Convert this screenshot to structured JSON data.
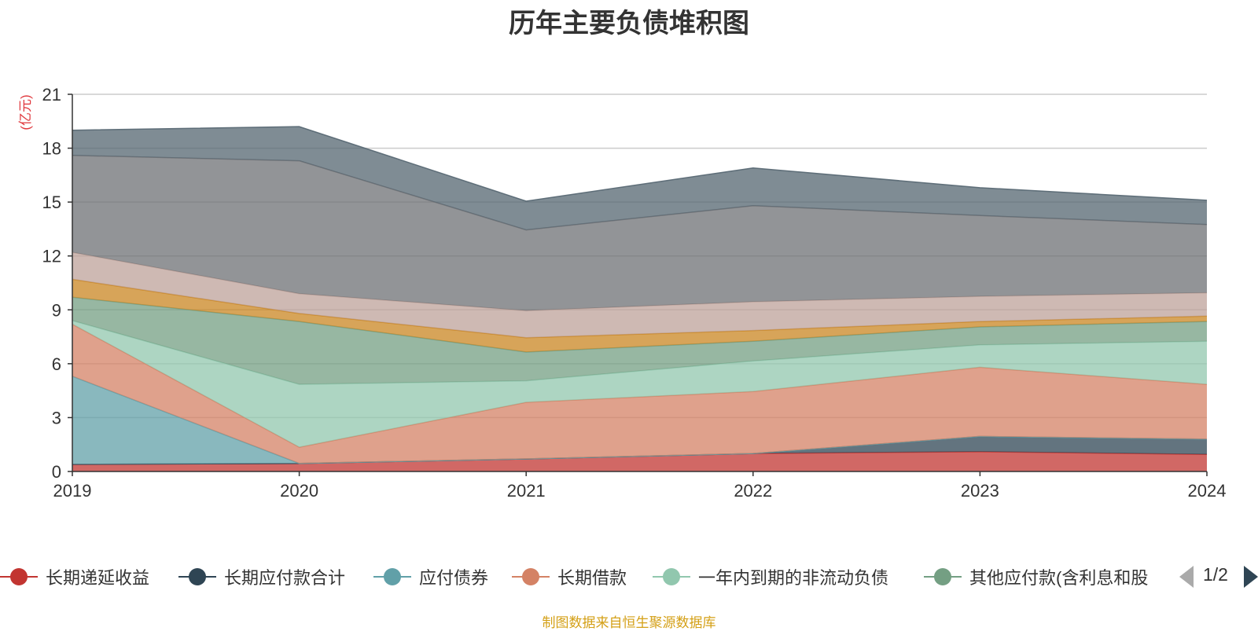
{
  "chart_data": {
    "type": "area",
    "stacked": true,
    "title": "历年主要负债堆积图",
    "ylabel": "(亿元)",
    "xlabel": "",
    "categories": [
      "2019",
      "2020",
      "2021",
      "2022",
      "2023",
      "2024"
    ],
    "ylim": [
      0,
      21
    ],
    "yticks": [
      0,
      3,
      6,
      9,
      12,
      15,
      18,
      21
    ],
    "grid": true,
    "legend_position": "bottom",
    "series": [
      {
        "name": "长期递延收益",
        "color": "#c23531",
        "values": [
          0.4,
          0.45,
          0.7,
          1.0,
          1.1,
          0.95
        ]
      },
      {
        "name": "长期应付款合计",
        "color": "#2f4554",
        "values": [
          0,
          0,
          0,
          0,
          0.85,
          0.85
        ]
      },
      {
        "name": "应付债券",
        "color": "#61a0a8",
        "values": [
          4.9,
          0,
          0,
          0,
          0,
          0
        ]
      },
      {
        "name": "长期借款",
        "color": "#d48265",
        "values": [
          2.9,
          0.9,
          3.15,
          3.45,
          3.85,
          3.05
        ]
      },
      {
        "name": "一年内到期的非流动负债",
        "color": "#91c7ae",
        "values": [
          0.2,
          3.5,
          1.2,
          1.7,
          1.25,
          2.4
        ]
      },
      {
        "name": "其他应付款(含利息和股利)",
        "color": "#749f83",
        "values": [
          1.3,
          3.5,
          1.6,
          1.1,
          1.0,
          1.1
        ]
      },
      {
        "name": "",
        "color": "#ca8622",
        "values": [
          1.0,
          0.45,
          0.8,
          0.6,
          0.3,
          0.3
        ]
      },
      {
        "name": "",
        "color": "#bda29a",
        "values": [
          1.5,
          1.1,
          1.5,
          1.6,
          1.4,
          1.3
        ]
      },
      {
        "name": "",
        "color": "#6e7074",
        "values": [
          5.4,
          7.4,
          4.5,
          5.35,
          4.5,
          3.8
        ]
      },
      {
        "name": "",
        "color": "#546570",
        "values": [
          1.4,
          1.9,
          1.6,
          2.1,
          1.55,
          1.35
        ]
      }
    ]
  },
  "legend_visible_count": 6,
  "legend_labels": [
    "长期递延收益",
    "长期应付款合计",
    "应付债券",
    "长期借款",
    "一年内到期的非流动负债",
    "其他应付款(含利息和股"
  ],
  "pager": {
    "text": "1/2"
  },
  "source_note": "制图数据来自恒生聚源数据库"
}
